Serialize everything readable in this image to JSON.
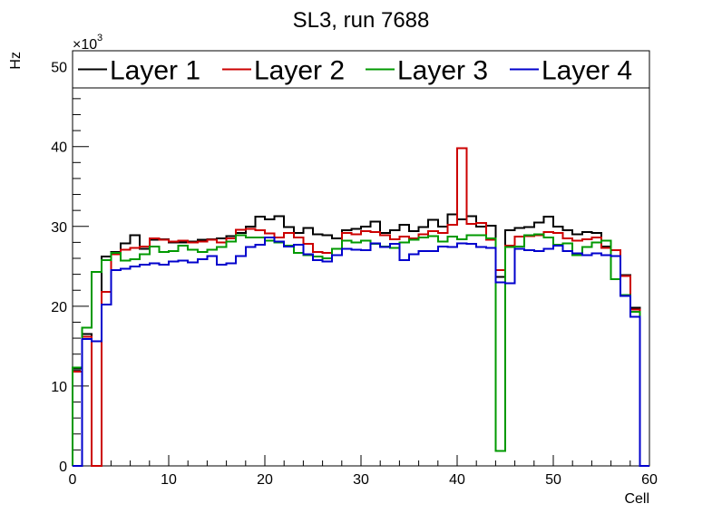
{
  "chart_data": {
    "type": "histogram-step",
    "title": "SL3, run 7688",
    "xlabel": "Cell",
    "ylabel": "Hz",
    "y_multiplier_label": "×10",
    "y_multiplier_exponent": "3",
    "xlim": [
      0,
      60
    ],
    "ylim": [
      0,
      52
    ],
    "x_ticks": [
      0,
      10,
      20,
      30,
      40,
      50,
      60
    ],
    "y_ticks": [
      0,
      10,
      20,
      30,
      40,
      50
    ],
    "legend_position": "top",
    "series": [
      {
        "name": "Layer 1",
        "color": "#000000",
        "values": [
          12.2,
          16.5,
          0,
          26.2,
          26.8,
          27.9,
          28.9,
          27.2,
          28.3,
          28.4,
          28.0,
          28.0,
          28.1,
          28.3,
          28.4,
          28.5,
          28.8,
          29.2,
          30.0,
          31.2,
          30.9,
          31.3,
          29.9,
          29.2,
          29.8,
          29.0,
          28.9,
          28.5,
          29.5,
          29.7,
          30.0,
          30.6,
          29.2,
          29.5,
          30.2,
          29.4,
          29.9,
          30.8,
          30.0,
          31.5,
          30.9,
          31.3,
          30.0,
          30.1,
          23.7,
          29.5,
          29.8,
          29.9,
          30.5,
          31.2,
          30.0,
          29.5,
          29.0,
          29.3,
          29.2,
          27.5,
          26.3,
          23.9,
          19.8,
          0
        ],
        "y_offset": 0
      },
      {
        "name": "Layer 2",
        "color": "#cc0000",
        "values": [
          11.8,
          16.2,
          0,
          21.8,
          26.5,
          27.1,
          27.3,
          27.5,
          28.5,
          28.3,
          28.1,
          28.2,
          28.0,
          28.1,
          28.3,
          28.0,
          28.5,
          29.6,
          29.7,
          29.5,
          29.1,
          28.6,
          29.2,
          28.6,
          27.8,
          26.8,
          26.7,
          26.4,
          29.2,
          29.0,
          29.4,
          29.3,
          28.9,
          28.4,
          28.7,
          28.5,
          29.0,
          29.4,
          29.2,
          30.2,
          39.8,
          30.3,
          30.4,
          28.3,
          24.5,
          27.6,
          28.7,
          28.8,
          28.9,
          29.3,
          29.2,
          28.5,
          28.2,
          28.4,
          28.6,
          27.3,
          27.0,
          23.8,
          19.6,
          0
        ],
        "y_offset": 0
      },
      {
        "name": "Layer 3",
        "color": "#009900",
        "values": [
          12.3,
          17.3,
          24.3,
          25.8,
          26.7,
          25.7,
          25.9,
          26.5,
          27.5,
          26.8,
          26.9,
          27.6,
          27.1,
          26.8,
          27.1,
          27.4,
          28.1,
          28.9,
          28.6,
          28.6,
          28.2,
          28.0,
          27.6,
          26.7,
          26.4,
          26.2,
          26.0,
          27.2,
          28.2,
          28.0,
          28.2,
          27.8,
          27.5,
          27.3,
          28.0,
          28.3,
          28.6,
          28.8,
          28.1,
          28.7,
          28.4,
          28.9,
          28.9,
          28.5,
          1.9,
          27.4,
          27.5,
          28.9,
          29.0,
          28.6,
          27.7,
          27.9,
          26.4,
          27.4,
          28.0,
          28.2,
          23.4,
          21.4,
          19.3,
          0
        ],
        "y_offset": 0
      },
      {
        "name": "Layer 4",
        "color": "#0000cc",
        "values": [
          0,
          15.9,
          15.6,
          20.2,
          24.5,
          24.7,
          25.0,
          25.2,
          25.4,
          25.2,
          25.6,
          25.7,
          25.5,
          25.9,
          26.3,
          25.2,
          25.4,
          26.3,
          27.4,
          27.7,
          28.6,
          28.1,
          27.5,
          27.7,
          26.5,
          25.8,
          25.6,
          26.4,
          27.2,
          27.1,
          27.0,
          27.9,
          27.4,
          27.8,
          25.8,
          26.5,
          26.9,
          26.9,
          27.5,
          27.4,
          27.9,
          27.8,
          27.4,
          27.3,
          23.0,
          22.9,
          27.2,
          27.0,
          26.9,
          27.2,
          27.6,
          26.9,
          26.6,
          26.4,
          26.6,
          26.4,
          26.3,
          21.3,
          18.7,
          0
        ],
        "y_offset": 0
      }
    ]
  }
}
